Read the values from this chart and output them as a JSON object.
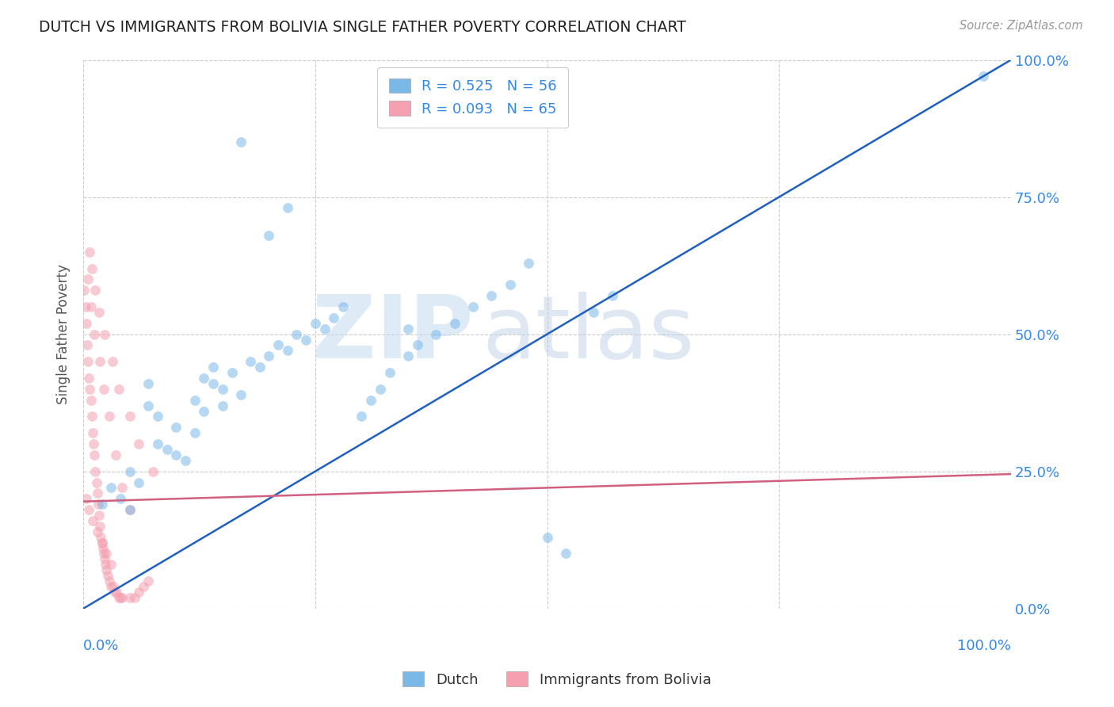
{
  "title": "DUTCH VS IMMIGRANTS FROM BOLIVIA SINGLE FATHER POVERTY CORRELATION CHART",
  "source": "Source: ZipAtlas.com",
  "ylabel": "Single Father Poverty",
  "ytick_labels": [
    "0.0%",
    "25.0%",
    "50.0%",
    "75.0%",
    "100.0%"
  ],
  "ytick_positions": [
    0.0,
    0.25,
    0.5,
    0.75,
    1.0
  ],
  "xtick_positions": [
    0.0,
    0.25,
    0.5,
    0.75,
    1.0
  ],
  "dutch_color": "#7ab8e8",
  "bolivia_color": "#f4a0b0",
  "dutch_regression_color": "#2060c0",
  "bolivia_regression_color": "#d06080",
  "watermark_color": "#d8eaf8",
  "grid_color": "#cccccc",
  "scatter_alpha": 0.55,
  "scatter_size": 85,
  "xlim": [
    0.0,
    1.0
  ],
  "ylim": [
    0.0,
    1.0
  ],
  "dutch_line_x0": 0.0,
  "dutch_line_y0": 0.0,
  "dutch_line_x1": 1.0,
  "dutch_line_y1": 1.0,
  "bolivia_line_x0": 0.0,
  "bolivia_line_y0": 0.195,
  "bolivia_line_x1": 1.0,
  "bolivia_line_y1": 0.245,
  "dutch_scatter_x": [
    0.02,
    0.03,
    0.04,
    0.05,
    0.05,
    0.06,
    0.07,
    0.07,
    0.08,
    0.08,
    0.09,
    0.1,
    0.1,
    0.11,
    0.12,
    0.12,
    0.13,
    0.13,
    0.14,
    0.14,
    0.15,
    0.15,
    0.16,
    0.17,
    0.18,
    0.19,
    0.2,
    0.21,
    0.22,
    0.23,
    0.24,
    0.25,
    0.26,
    0.27,
    0.28,
    0.3,
    0.31,
    0.32,
    0.33,
    0.35,
    0.36,
    0.38,
    0.4,
    0.42,
    0.44,
    0.46,
    0.48,
    0.55,
    0.57,
    0.35,
    0.2,
    0.22,
    0.5,
    0.52,
    0.97,
    0.17
  ],
  "dutch_scatter_y": [
    0.19,
    0.22,
    0.2,
    0.25,
    0.18,
    0.23,
    0.37,
    0.41,
    0.3,
    0.35,
    0.29,
    0.28,
    0.33,
    0.27,
    0.38,
    0.32,
    0.36,
    0.42,
    0.41,
    0.44,
    0.4,
    0.37,
    0.43,
    0.39,
    0.45,
    0.44,
    0.46,
    0.48,
    0.47,
    0.5,
    0.49,
    0.52,
    0.51,
    0.53,
    0.55,
    0.35,
    0.38,
    0.4,
    0.43,
    0.46,
    0.48,
    0.5,
    0.52,
    0.55,
    0.57,
    0.59,
    0.63,
    0.54,
    0.57,
    0.51,
    0.68,
    0.73,
    0.13,
    0.1,
    0.97,
    0.85
  ],
  "bolivia_scatter_x": [
    0.001,
    0.002,
    0.003,
    0.004,
    0.005,
    0.006,
    0.007,
    0.008,
    0.009,
    0.01,
    0.011,
    0.012,
    0.013,
    0.014,
    0.015,
    0.016,
    0.017,
    0.018,
    0.019,
    0.02,
    0.021,
    0.022,
    0.023,
    0.024,
    0.025,
    0.026,
    0.028,
    0.03,
    0.032,
    0.034,
    0.036,
    0.038,
    0.04,
    0.042,
    0.05,
    0.055,
    0.06,
    0.065,
    0.07,
    0.005,
    0.008,
    0.012,
    0.018,
    0.022,
    0.028,
    0.035,
    0.042,
    0.05,
    0.003,
    0.006,
    0.01,
    0.015,
    0.02,
    0.025,
    0.03,
    0.007,
    0.009,
    0.013,
    0.017,
    0.023,
    0.031,
    0.038,
    0.05,
    0.06,
    0.075
  ],
  "bolivia_scatter_y": [
    0.58,
    0.55,
    0.52,
    0.48,
    0.45,
    0.42,
    0.4,
    0.38,
    0.35,
    0.32,
    0.3,
    0.28,
    0.25,
    0.23,
    0.21,
    0.19,
    0.17,
    0.15,
    0.13,
    0.12,
    0.11,
    0.1,
    0.09,
    0.08,
    0.07,
    0.06,
    0.05,
    0.04,
    0.04,
    0.03,
    0.03,
    0.02,
    0.02,
    0.02,
    0.02,
    0.02,
    0.03,
    0.04,
    0.05,
    0.6,
    0.55,
    0.5,
    0.45,
    0.4,
    0.35,
    0.28,
    0.22,
    0.18,
    0.2,
    0.18,
    0.16,
    0.14,
    0.12,
    0.1,
    0.08,
    0.65,
    0.62,
    0.58,
    0.54,
    0.5,
    0.45,
    0.4,
    0.35,
    0.3,
    0.25
  ]
}
